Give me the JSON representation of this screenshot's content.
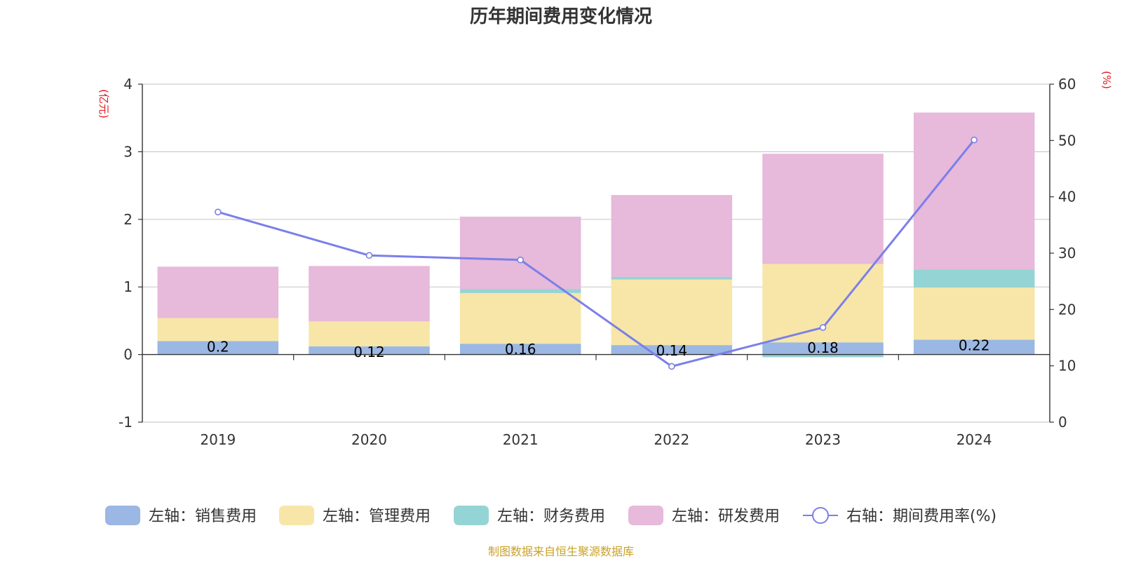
{
  "chart_data": {
    "type": "bar",
    "stacked": true,
    "title": "历年期间费用变化情况",
    "categories": [
      "2019",
      "2020",
      "2021",
      "2022",
      "2023",
      "2024"
    ],
    "y_left": {
      "unit_label": "(亿元)",
      "ylim": [
        -1,
        4
      ],
      "ticks": [
        -1,
        0,
        1,
        2,
        3,
        4
      ]
    },
    "y_right": {
      "unit_label": "(%)",
      "ylim": [
        0,
        60
      ],
      "ticks": [
        0,
        10,
        20,
        30,
        40,
        50,
        60
      ]
    },
    "series": [
      {
        "name": "左轴：销售费用",
        "axis": "left",
        "type": "bar",
        "color": "#9bb7e3",
        "values": [
          0.2,
          0.12,
          0.16,
          0.14,
          0.18,
          0.22
        ],
        "data_labels": [
          "0.2",
          "0.12",
          "0.16",
          "0.14",
          "0.18",
          "0.22"
        ]
      },
      {
        "name": "左轴：管理费用",
        "axis": "left",
        "type": "bar",
        "color": "#f7e6a7",
        "values": [
          0.34,
          0.37,
          0.75,
          0.97,
          1.16,
          0.77
        ]
      },
      {
        "name": "左轴：财务费用",
        "axis": "left",
        "type": "bar",
        "color": "#95d4d5",
        "values": [
          0.0,
          0.0,
          0.06,
          0.04,
          -0.04,
          0.27
        ]
      },
      {
        "name": "左轴：研发费用",
        "axis": "left",
        "type": "bar",
        "color": "#e7b9da",
        "values": [
          0.76,
          0.82,
          1.07,
          1.21,
          1.63,
          2.32
        ]
      },
      {
        "name": "右轴：期间费用率(%)",
        "axis": "right",
        "type": "line",
        "color": "#7b7fe9",
        "values": [
          37.3,
          29.6,
          28.8,
          9.9,
          16.8,
          50.1
        ]
      }
    ]
  },
  "source_text": "制图数据来自恒生聚源数据库",
  "colors": {
    "axis_unit": "#e8141b",
    "source": "#c9a227",
    "grid": "#cccccc",
    "axis": "#333333"
  }
}
